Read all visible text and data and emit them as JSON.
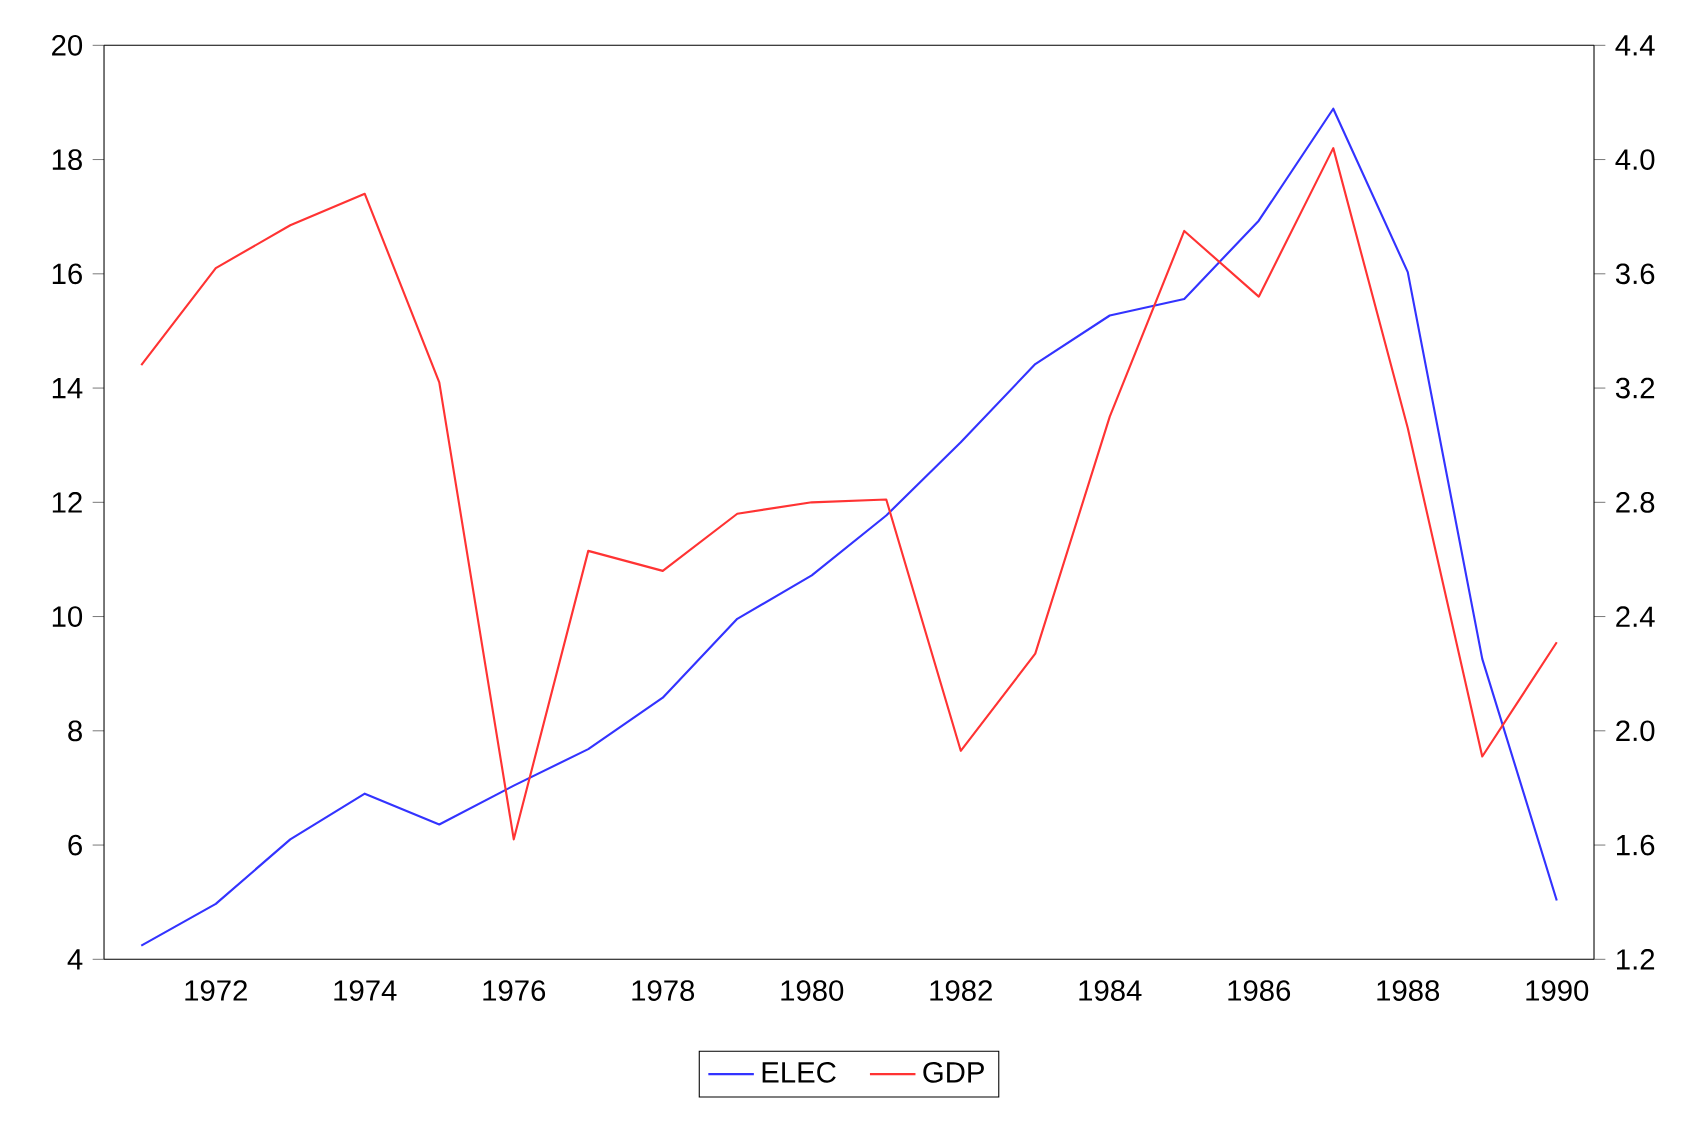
{
  "chart_data": {
    "type": "line",
    "x": [
      1971,
      1972,
      1973,
      1974,
      1975,
      1976,
      1977,
      1978,
      1979,
      1980,
      1981,
      1982,
      1983,
      1984,
      1985,
      1986,
      1987,
      1988,
      1989,
      1990
    ],
    "series": [
      {
        "name": "ELEC",
        "color": "#3333ff",
        "values": [
          4.24,
          4.97,
          6.1,
          6.9,
          6.36,
          7.04,
          7.68,
          8.58,
          9.96,
          10.72,
          11.77,
          13.05,
          14.42,
          15.27,
          15.56,
          16.93,
          18.89,
          16.03,
          9.26,
          5.03
        ]
      },
      {
        "name": "GDP",
        "color": "#ff3333",
        "axis": "y2",
        "values": [
          3.28,
          3.62,
          3.77,
          3.88,
          3.22,
          1.62,
          2.63,
          2.56,
          2.76,
          2.8,
          2.81,
          1.93,
          2.27,
          3.1,
          3.75,
          3.52,
          4.04,
          3.06,
          1.91,
          2.31
        ]
      }
    ],
    "xlim": [
      1970.5,
      1990.5
    ],
    "xticks": [
      1972,
      1974,
      1976,
      1978,
      1980,
      1982,
      1984,
      1986,
      1988,
      1990
    ],
    "ylim": [
      4,
      20
    ],
    "yticks": [
      4,
      6,
      8,
      10,
      12,
      14,
      16,
      18,
      20
    ],
    "y2lim": [
      1.2,
      4.4
    ],
    "y2ticks": [
      {
        "value": 1.2,
        "label": "1.2"
      },
      {
        "value": 1.6,
        "label": "1.6"
      },
      {
        "value": 2.0,
        "label": "2.0"
      },
      {
        "value": 2.4,
        "label": "2.4"
      },
      {
        "value": 2.8,
        "label": "2.8"
      },
      {
        "value": 3.2,
        "label": "3.2"
      },
      {
        "value": 3.6,
        "label": "3.6"
      },
      {
        "value": 4.0,
        "label": "4.0"
      },
      {
        "value": 4.4,
        "label": "4.4"
      }
    ],
    "legend": "bottom"
  }
}
